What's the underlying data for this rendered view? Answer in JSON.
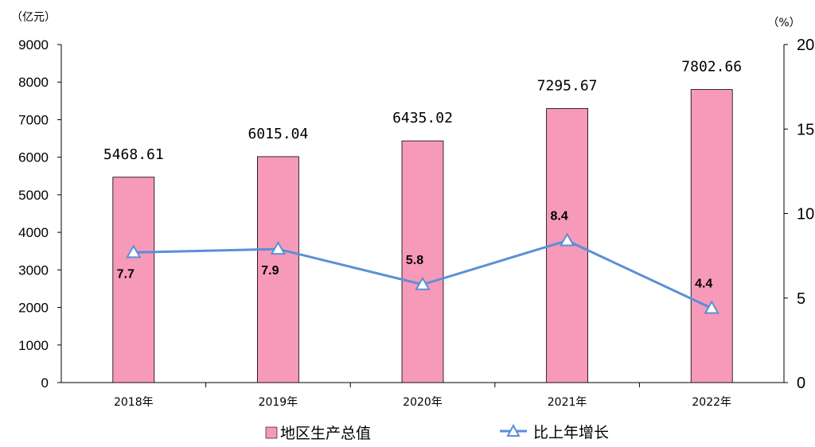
{
  "chart_data": {
    "type": "bar",
    "categories": [
      "2018年",
      "2019年",
      "2020年",
      "2021年",
      "2022年"
    ],
    "y_left": {
      "unit": "（亿元）",
      "ylim": [
        0,
        9000
      ],
      "ticks": [
        "0",
        "1000",
        "2000",
        "3000",
        "4000",
        "5000",
        "6000",
        "7000",
        "8000",
        "9000"
      ]
    },
    "y_right": {
      "unit": "（%）",
      "ylim": [
        0,
        20
      ],
      "ticks": [
        "0",
        "5",
        "10",
        "15",
        "20"
      ]
    },
    "grid": false,
    "series": [
      {
        "name": "地区生产总值",
        "type": "bar",
        "axis": "left",
        "color": "#f799b8",
        "values": [
          5468.61,
          6015.04,
          6435.02,
          7295.67,
          7802.66
        ],
        "labels": [
          "5468.61",
          "6015.04",
          "6435.02",
          "7295.67",
          "7802.66"
        ]
      },
      {
        "name": "比上年增长",
        "type": "line",
        "axis": "right",
        "color": "#5b8fd6",
        "marker": "triangle",
        "values": [
          7.7,
          7.9,
          5.8,
          8.4,
          4.4
        ],
        "labels": [
          "7.7",
          "7.9",
          "5.8",
          "8.4",
          "4.4"
        ]
      }
    ],
    "legend": "bottom-center"
  }
}
